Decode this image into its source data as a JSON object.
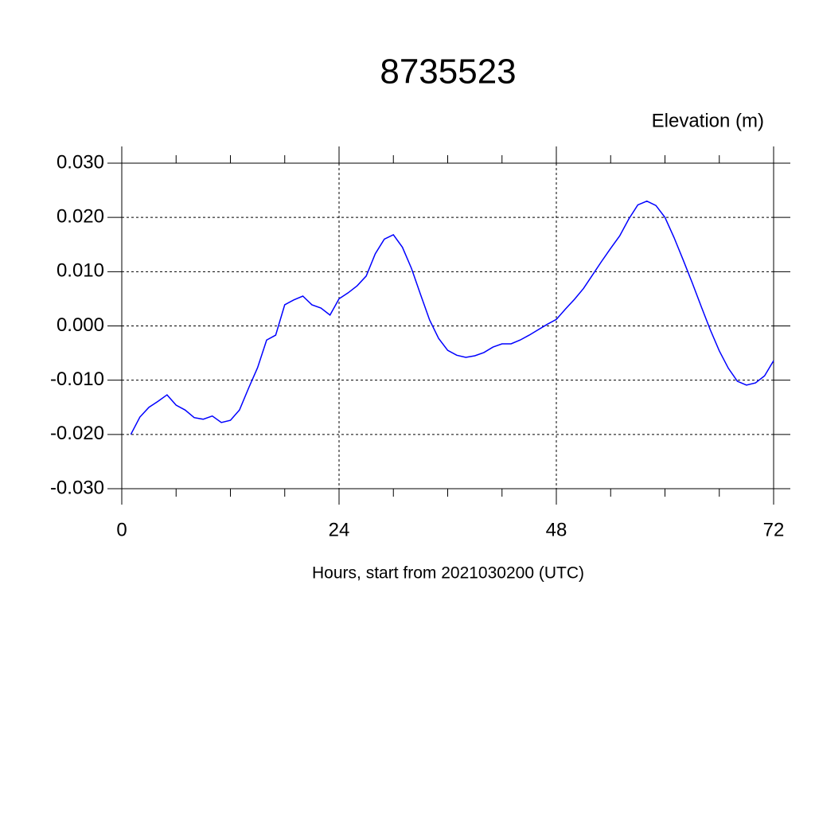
{
  "chart_data": {
    "type": "line",
    "title": "8735523",
    "subtitle": "Elevation (m)",
    "x_label": "Hours, start from 2021030200 (UTC)",
    "x": [
      1,
      2,
      3,
      4,
      5,
      6,
      7,
      8,
      9,
      10,
      11,
      12,
      13,
      14,
      15,
      16,
      17,
      18,
      19,
      20,
      21,
      22,
      23,
      24,
      25,
      26,
      27,
      28,
      29,
      30,
      31,
      32,
      33,
      34,
      35,
      36,
      37,
      38,
      39,
      40,
      41,
      42,
      43,
      44,
      45,
      46,
      47,
      48,
      49,
      50,
      51,
      52,
      53,
      54,
      55,
      56,
      57,
      58,
      59,
      60,
      61,
      62,
      63,
      64,
      65,
      66,
      67,
      68,
      69,
      70,
      71,
      72
    ],
    "series": [
      {
        "color": "#0000ff",
        "values": [
          -0.02,
          -0.0168,
          -0.015,
          -0.0139,
          -0.0127,
          -0.0146,
          -0.0155,
          -0.0169,
          -0.0172,
          -0.0166,
          -0.0178,
          -0.0174,
          -0.0155,
          -0.0115,
          -0.0077,
          -0.0026,
          -0.0017,
          0.0039,
          0.0048,
          0.0055,
          0.0039,
          0.0033,
          0.002,
          0.005,
          0.0061,
          0.0074,
          0.0092,
          0.0133,
          0.016,
          0.0168,
          0.0145,
          0.0106,
          0.0058,
          0.0011,
          -0.0023,
          -0.0045,
          -0.0054,
          -0.0058,
          -0.0055,
          -0.0049,
          -0.0039,
          -0.0033,
          -0.0033,
          -0.0026,
          -0.0017,
          -0.0007,
          0.0003,
          0.0012,
          0.0031,
          0.0049,
          0.0069,
          0.0094,
          0.0119,
          0.0143,
          0.0166,
          0.0197,
          0.0223,
          0.023,
          0.0222,
          0.02,
          0.0163,
          0.0122,
          0.008,
          0.0036,
          -0.0007,
          -0.0046,
          -0.0078,
          -0.0102,
          -0.0109,
          -0.0105,
          -0.0092,
          -0.0064
        ]
      }
    ],
    "xlim": [
      0,
      72
    ],
    "xticks": [
      0,
      24,
      48,
      72
    ],
    "xticks_minor": [
      6,
      12,
      18,
      30,
      36,
      42,
      54,
      60,
      66
    ],
    "ylim": [
      -0.03,
      0.03
    ],
    "yticks": [
      {
        "value": -0.03,
        "label": "-0.030"
      },
      {
        "value": -0.02,
        "label": "-0.020"
      },
      {
        "value": -0.01,
        "label": "-0.010"
      },
      {
        "value": 0,
        "label": "0.000"
      },
      {
        "value": 0.01,
        "label": "0.010"
      },
      {
        "value": 0.02,
        "label": "0.020"
      },
      {
        "value": 0.03,
        "label": "0.030"
      }
    ],
    "grid": true
  }
}
